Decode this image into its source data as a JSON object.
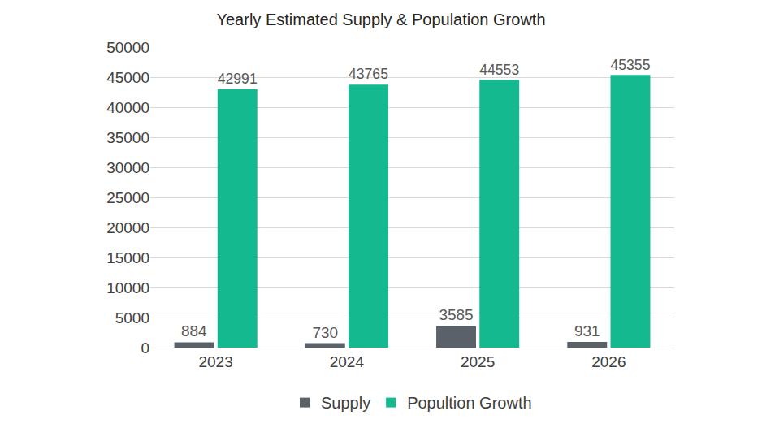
{
  "chart_data": {
    "type": "bar",
    "title": "Yearly Estimated Supply & Population Growth",
    "categories": [
      "2023",
      "2024",
      "2025",
      "2026"
    ],
    "series": [
      {
        "name": "Supply",
        "color": "#5b6168",
        "values": [
          884,
          730,
          3585,
          931
        ]
      },
      {
        "name": "Popultion Growth",
        "color": "#14b98f",
        "values": [
          42991,
          43765,
          44553,
          45355
        ]
      }
    ],
    "ylim": [
      0,
      50000
    ],
    "yticks": [
      0,
      5000,
      10000,
      15000,
      20000,
      25000,
      30000,
      35000,
      40000,
      45000,
      50000
    ],
    "grid": true,
    "legend": "bottom",
    "data_labels": true
  }
}
